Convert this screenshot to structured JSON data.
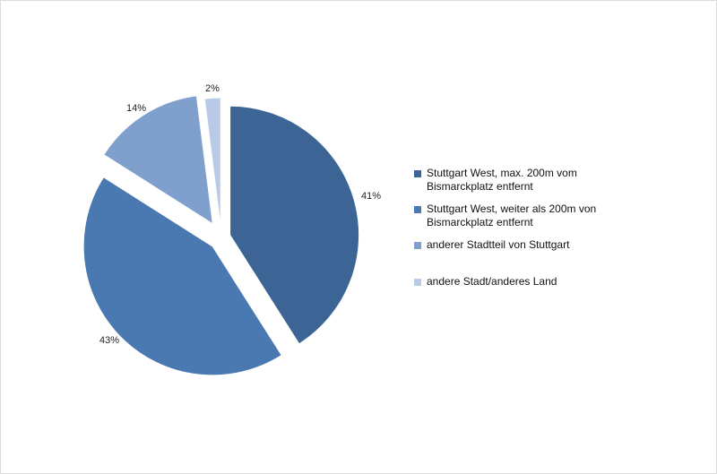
{
  "chart_data": {
    "type": "pie",
    "slices": [
      {
        "label": "Stuttgart West, max. 200m vom Bismarckplatz entfernt",
        "value": 41,
        "display": "41%",
        "color": "#3c6596"
      },
      {
        "label": "Stuttgart West, weiter als 200m von Bismarckplatz entfernt",
        "value": 43,
        "display": "43%",
        "color": "#4a78b0"
      },
      {
        "label": "anderer Stadtteil von Stuttgart",
        "value": 14,
        "display": "14%",
        "color": "#7f9fcc"
      },
      {
        "label": "andere Stadt/anderes  Land",
        "value": 2,
        "display": "2%",
        "color": "#b8cae6"
      }
    ],
    "legend_position": "right",
    "exploded": true
  }
}
